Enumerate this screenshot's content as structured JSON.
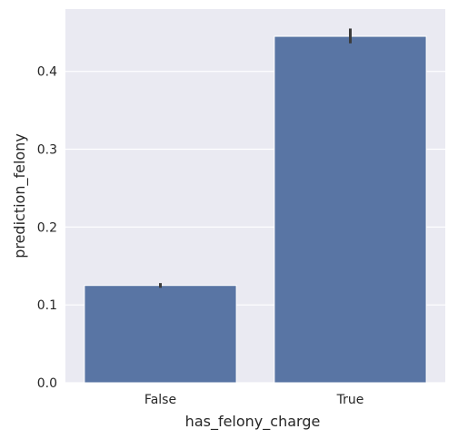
{
  "chart_data": {
    "type": "bar",
    "title": "",
    "xlabel": "has_felony_charge",
    "ylabel": "prediction_felony",
    "categories": [
      "False",
      "True"
    ],
    "values": [
      0.125,
      0.445
    ],
    "error_bars": [
      [
        0.122,
        0.128
      ],
      [
        0.436,
        0.455
      ]
    ],
    "ylim": [
      0,
      0.48
    ],
    "yticks": [
      0.0,
      0.1,
      0.2,
      0.3,
      0.4
    ],
    "ytick_labels": [
      "0.0",
      "0.1",
      "0.2",
      "0.3",
      "0.4"
    ],
    "grid": true,
    "colors": {
      "bar": "#5975a4",
      "plot_background": "#eaeaf2",
      "grid": "#ffffff",
      "error_bar": "#3c3c3c"
    }
  }
}
